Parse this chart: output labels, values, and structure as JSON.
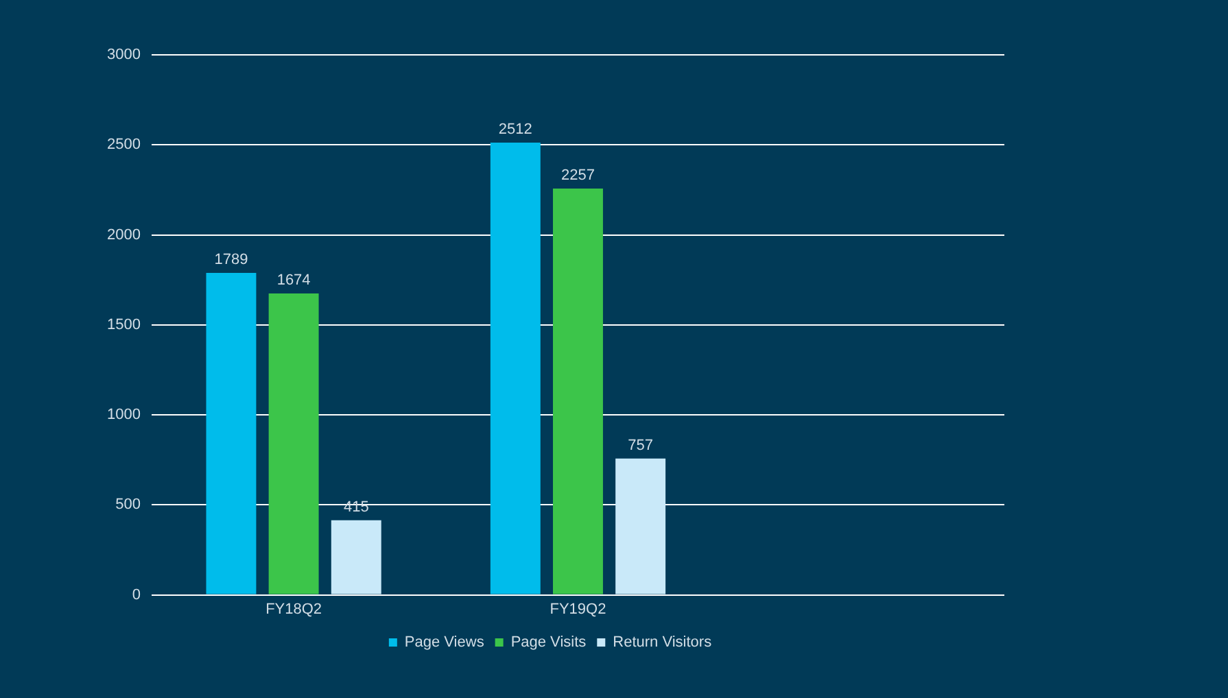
{
  "chart_data": {
    "type": "bar",
    "categories": [
      "FY18Q2",
      "FY19Q2",
      null
    ],
    "series": [
      {
        "name": "Page Views",
        "color": "#00bceb",
        "values": [
          1789,
          2512,
          null
        ]
      },
      {
        "name": "Page Visits",
        "color": "#3cc54a",
        "values": [
          1674,
          2257,
          null
        ]
      },
      {
        "name": "Return Visitors",
        "color": "#c9e9f9",
        "values": [
          415,
          757,
          null
        ]
      }
    ],
    "ylim": [
      0,
      3000
    ],
    "yticks": [
      0,
      500,
      1000,
      1500,
      2000,
      2500,
      3000
    ],
    "grid": "y",
    "legend": "bottom",
    "data_labels": true
  }
}
